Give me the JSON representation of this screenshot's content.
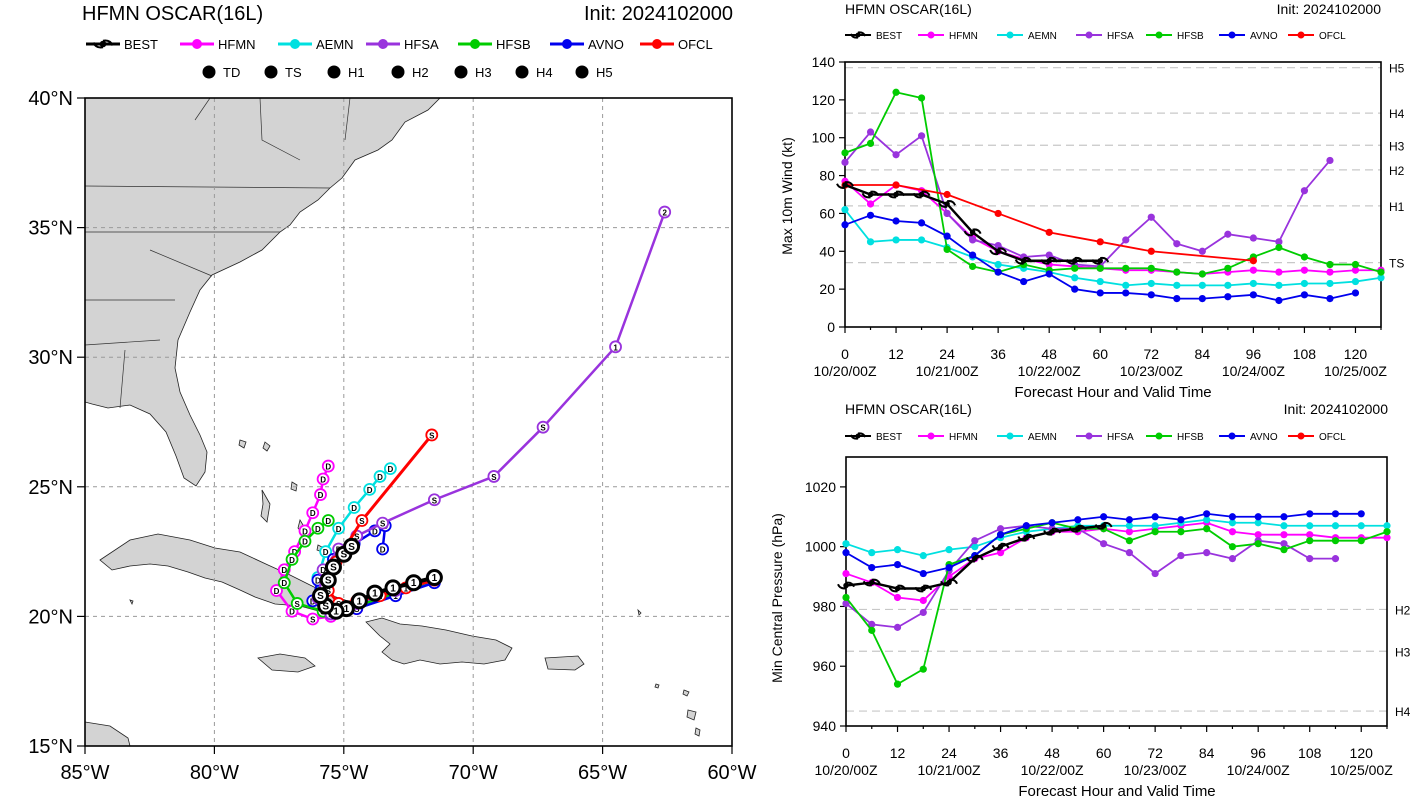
{
  "map_panel": {
    "title": "HFMN OSCAR(16L)",
    "init": "Init: 2024102000",
    "legend": [
      {
        "name": "BEST",
        "color": "#000000"
      },
      {
        "name": "HFMN",
        "color": "#ff00ff"
      },
      {
        "name": "AEMN",
        "color": "#00e0e0"
      },
      {
        "name": "HFSA",
        "color": "#9933dd"
      },
      {
        "name": "HFSB",
        "color": "#00cc00"
      },
      {
        "name": "AVNO",
        "color": "#0000ee"
      },
      {
        "name": "OFCL",
        "color": "#ff0000"
      }
    ],
    "intensity_legend": [
      {
        "symbol": "D",
        "label": "TD"
      },
      {
        "symbol": "S",
        "label": "TS"
      },
      {
        "symbol": "1",
        "label": "H1"
      },
      {
        "symbol": "2",
        "label": "H2"
      },
      {
        "symbol": "3",
        "label": "H3"
      },
      {
        "symbol": "4",
        "label": "H4"
      },
      {
        "symbol": "5",
        "label": "H5"
      }
    ],
    "lon_labels": [
      "85°W",
      "80°W",
      "75°W",
      "70°W",
      "65°W",
      "60°W"
    ],
    "lat_labels": [
      "40°N",
      "35°N",
      "30°N",
      "25°N",
      "20°N",
      "15°N"
    ]
  },
  "wind_panel": {
    "title": "HFMN OSCAR(16L)",
    "init": "Init: 2024102000",
    "ylabel": "Max 10m Wind (kt)",
    "xlabel": "Forecast Hour and Valid Time",
    "yticks": [
      "0",
      "20",
      "40",
      "60",
      "80",
      "100",
      "120",
      "140"
    ],
    "xticks": [
      "0",
      "12",
      "24",
      "36",
      "48",
      "60",
      "72",
      "84",
      "96",
      "108",
      "120"
    ],
    "date_labels": [
      "10/20/00Z",
      "10/21/00Z",
      "10/22/00Z",
      "10/23/00Z",
      "10/24/00Z",
      "10/25/00Z"
    ],
    "thresholds": [
      {
        "label": "TS",
        "value": 34
      },
      {
        "label": "H1",
        "value": 64
      },
      {
        "label": "H2",
        "value": 83
      },
      {
        "label": "H3",
        "value": 96
      },
      {
        "label": "H4",
        "value": 113
      },
      {
        "label": "H5",
        "value": 137
      }
    ]
  },
  "pres_panel": {
    "title": "HFMN OSCAR(16L)",
    "init": "Init: 2024102000",
    "ylabel": "Min Central Pressure (hPa)",
    "xlabel": "Forecast Hour and Valid Time",
    "yticks": [
      "940",
      "960",
      "980",
      "1000",
      "1020"
    ],
    "xticks": [
      "0",
      "12",
      "24",
      "36",
      "48",
      "60",
      "72",
      "84",
      "96",
      "108",
      "120"
    ],
    "date_labels": [
      "10/20/00Z",
      "10/21/00Z",
      "10/22/00Z",
      "10/23/00Z",
      "10/24/00Z",
      "10/25/00Z"
    ],
    "thresholds": [
      {
        "label": "H2",
        "value": 979
      },
      {
        "label": "H3",
        "value": 965
      },
      {
        "label": "H4",
        "value": 945
      }
    ]
  },
  "chart_data": [
    {
      "type": "line",
      "title": "HFMN OSCAR(16L)",
      "xlabel": "Forecast Hour and Valid Time",
      "ylabel": "Max 10m Wind (kt)",
      "xlim": [
        0,
        126
      ],
      "ylim": [
        0,
        140
      ],
      "series": [
        {
          "name": "BEST",
          "color": "#000000",
          "x": [
            0,
            6,
            12,
            18,
            24,
            30,
            36,
            42,
            48,
            54,
            60
          ],
          "values": [
            75,
            70,
            70,
            70,
            65,
            50,
            40,
            35,
            35,
            35,
            35
          ]
        },
        {
          "name": "HFMN",
          "color": "#ff00ff",
          "x": [
            0,
            6,
            12,
            18,
            24,
            30,
            36,
            42,
            48,
            54,
            60,
            66,
            72,
            78,
            84,
            90,
            96,
            102,
            108,
            114,
            120,
            126
          ],
          "values": [
            77,
            65,
            75,
            72,
            60,
            47,
            40,
            36,
            33,
            32,
            31,
            30,
            30,
            29,
            28,
            29,
            30,
            29,
            30,
            29,
            30,
            30
          ]
        },
        {
          "name": "AEMN",
          "color": "#00e0e0",
          "x": [
            0,
            6,
            12,
            18,
            24,
            30,
            36,
            42,
            48,
            54,
            60,
            66,
            72,
            78,
            84,
            90,
            96,
            102,
            108,
            114,
            120,
            126
          ],
          "values": [
            62,
            45,
            46,
            46,
            42,
            37,
            33,
            31,
            29,
            26,
            24,
            22,
            23,
            22,
            22,
            22,
            23,
            22,
            23,
            23,
            24,
            26
          ]
        },
        {
          "name": "HFSA",
          "color": "#9933dd",
          "x": [
            0,
            6,
            12,
            18,
            24,
            30,
            36,
            42,
            48,
            54,
            60,
            66,
            72,
            78,
            84,
            90,
            96,
            102,
            108,
            114
          ],
          "values": [
            87,
            103,
            91,
            101,
            60,
            46,
            43,
            37,
            38,
            33,
            32,
            46,
            58,
            44,
            40,
            49,
            47,
            45,
            72,
            88
          ]
        },
        {
          "name": "HFSB",
          "color": "#00cc00",
          "x": [
            0,
            6,
            12,
            18,
            24,
            30,
            36,
            42,
            48,
            54,
            60,
            66,
            72,
            78,
            84,
            90,
            96,
            102,
            108,
            114,
            120,
            126
          ],
          "values": [
            92,
            97,
            124,
            121,
            41,
            32,
            29,
            33,
            30,
            31,
            31,
            31,
            31,
            29,
            28,
            31,
            37,
            42,
            37,
            33,
            33,
            29
          ]
        },
        {
          "name": "AVNO",
          "color": "#0000ee",
          "x": [
            0,
            6,
            12,
            18,
            24,
            30,
            36,
            42,
            48,
            54,
            60,
            66,
            72,
            78,
            84,
            90,
            96,
            102,
            108,
            114,
            120
          ],
          "values": [
            54,
            59,
            56,
            55,
            48,
            38,
            29,
            24,
            28,
            20,
            18,
            18,
            17,
            15,
            15,
            16,
            17,
            14,
            17,
            15,
            18
          ]
        },
        {
          "name": "OFCL",
          "color": "#ff0000",
          "x": [
            0,
            12,
            24,
            36,
            48,
            60,
            72,
            96
          ],
          "values": [
            75,
            75,
            70,
            60,
            50,
            45,
            40,
            35
          ]
        }
      ]
    },
    {
      "type": "line",
      "title": "HFMN OSCAR(16L)",
      "xlabel": "Forecast Hour and Valid Time",
      "ylabel": "Min Central Pressure (hPa)",
      "xlim": [
        0,
        126
      ],
      "ylim": [
        940,
        1030
      ],
      "series": [
        {
          "name": "BEST",
          "color": "#000000",
          "x": [
            0,
            6,
            12,
            18,
            24,
            30,
            36,
            42,
            48,
            54,
            60
          ],
          "values": [
            987,
            988,
            986,
            986,
            988,
            996,
            1000,
            1003,
            1005,
            1006,
            1007
          ]
        },
        {
          "name": "HFMN",
          "color": "#ff00ff",
          "x": [
            0,
            6,
            12,
            18,
            24,
            30,
            36,
            42,
            48,
            54,
            60,
            66,
            72,
            78,
            84,
            90,
            96,
            102,
            108,
            114,
            120,
            126
          ],
          "values": [
            991,
            988,
            983,
            982,
            990,
            996,
            998,
            1003,
            1005,
            1005,
            1006,
            1005,
            1006,
            1007,
            1008,
            1005,
            1004,
            1004,
            1004,
            1003,
            1003,
            1003
          ]
        },
        {
          "name": "AEMN",
          "color": "#00e0e0",
          "x": [
            0,
            6,
            12,
            18,
            24,
            30,
            36,
            42,
            48,
            54,
            60,
            66,
            72,
            78,
            84,
            90,
            96,
            102,
            108,
            114,
            120,
            126
          ],
          "values": [
            1001,
            998,
            999,
            997,
            999,
            1000,
            1003,
            1005,
            1006,
            1007,
            1007,
            1007,
            1007,
            1008,
            1009,
            1008,
            1008,
            1007,
            1007,
            1007,
            1007,
            1007
          ]
        },
        {
          "name": "HFSA",
          "color": "#9933dd",
          "x": [
            0,
            6,
            12,
            18,
            24,
            30,
            36,
            42,
            48,
            54,
            60,
            66,
            72,
            78,
            84,
            90,
            96,
            102,
            108,
            114
          ],
          "values": [
            981,
            974,
            973,
            978,
            992,
            1002,
            1006,
            1007,
            1006,
            1006,
            1001,
            998,
            991,
            997,
            998,
            996,
            1002,
            1001,
            996,
            996
          ]
        },
        {
          "name": "HFSB",
          "color": "#00cc00",
          "x": [
            0,
            6,
            12,
            18,
            24,
            30,
            36,
            42,
            48,
            54,
            60,
            66,
            72,
            78,
            84,
            90,
            96,
            102,
            108,
            114,
            120,
            126
          ],
          "values": [
            983,
            972,
            954,
            959,
            994,
            997,
            1004,
            1006,
            1008,
            1006,
            1006,
            1002,
            1005,
            1005,
            1006,
            1000,
            1001,
            999,
            1002,
            1002,
            1002,
            1005
          ]
        },
        {
          "name": "AVNO",
          "color": "#0000ee",
          "x": [
            0,
            6,
            12,
            18,
            24,
            30,
            36,
            42,
            48,
            54,
            60,
            66,
            72,
            78,
            84,
            90,
            96,
            102,
            108,
            114,
            120
          ],
          "values": [
            998,
            993,
            994,
            991,
            993,
            997,
            1004,
            1007,
            1008,
            1009,
            1010,
            1009,
            1010,
            1009,
            1011,
            1010,
            1010,
            1010,
            1011,
            1011,
            1011
          ]
        },
        {
          "name": "OFCL",
          "color": "#ff0000",
          "x": [],
          "values": []
        }
      ]
    },
    {
      "type": "line",
      "title": "HFMN OSCAR(16L)",
      "xlabel": "",
      "ylabel": "",
      "xlim": [
        -85,
        -60
      ],
      "ylim": [
        15,
        40
      ],
      "series": [
        {
          "name": "BEST",
          "color": "#000000",
          "lon": [
            -71.5,
            -72.3,
            -73.1,
            -73.8,
            -74.4,
            -74.9,
            -75.3,
            -75.7,
            -75.9,
            -75.6,
            -75.4,
            -75.0,
            -74.7
          ],
          "lat": [
            21.5,
            21.3,
            21.1,
            20.9,
            20.6,
            20.3,
            20.2,
            20.4,
            20.8,
            21.4,
            21.9,
            22.4,
            22.7
          ],
          "symbols": [
            "1",
            "1",
            "1",
            "1",
            "1",
            "1",
            "1",
            "S",
            "S",
            "S",
            "S",
            "S",
            "S"
          ]
        },
        {
          "name": "HFMN",
          "color": "#ff00ff",
          "lon": [
            -71.5,
            -73.0,
            -74.5,
            -75.5,
            -76.2,
            -77.0,
            -77.6,
            -77.3,
            -76.9,
            -76.5,
            -76.2,
            -75.9,
            -75.8,
            -75.6
          ],
          "lat": [
            21.4,
            20.9,
            20.3,
            20.0,
            19.9,
            20.2,
            21.0,
            21.8,
            22.5,
            23.3,
            24.0,
            24.7,
            25.3,
            25.8
          ],
          "symbols": [
            "1",
            "1",
            "1",
            "S",
            "S",
            "D",
            "D",
            "D",
            "D",
            "D",
            "D",
            "D",
            "D",
            "D"
          ]
        },
        {
          "name": "AEMN",
          "color": "#00e0e0",
          "lon": [
            -71.5,
            -73.0,
            -74.5,
            -75.4,
            -75.9,
            -76.0,
            -75.7,
            -75.2,
            -74.6,
            -74.0,
            -73.6,
            -73.2
          ],
          "lat": [
            21.4,
            20.9,
            20.4,
            20.2,
            20.6,
            21.5,
            22.5,
            23.4,
            24.2,
            24.9,
            25.4,
            25.7
          ],
          "symbols": [
            "1",
            "1",
            "S",
            "S",
            "S",
            "D",
            "D",
            "D",
            "D",
            "D",
            "D",
            "D"
          ]
        },
        {
          "name": "HFSA",
          "color": "#9933dd",
          "lon": [
            -71.5,
            -73.0,
            -74.5,
            -75.5,
            -76.0,
            -75.8,
            -75.2,
            -74.5,
            -73.5,
            -71.5,
            -69.2,
            -67.3,
            -64.5,
            -62.6
          ],
          "lat": [
            21.4,
            21.0,
            20.5,
            20.1,
            20.7,
            21.8,
            22.6,
            23.1,
            23.6,
            24.5,
            25.4,
            27.3,
            30.4,
            35.6
          ],
          "symbols": [
            "1",
            "1",
            "1",
            "S",
            "S",
            "D",
            "D",
            "S",
            "S",
            "S",
            "S",
            "S",
            "1",
            "2"
          ]
        },
        {
          "name": "HFSB",
          "color": "#00cc00",
          "lon": [
            -71.5,
            -73.0,
            -74.5,
            -75.8,
            -76.8,
            -77.3,
            -77.0,
            -76.5,
            -76.0,
            -75.6
          ],
          "lat": [
            21.4,
            20.9,
            20.4,
            20.2,
            20.5,
            21.3,
            22.2,
            22.9,
            23.4,
            23.7
          ],
          "symbols": [
            "1",
            "1",
            "S",
            "S",
            "S",
            "D",
            "D",
            "D",
            "D",
            "D"
          ]
        },
        {
          "name": "AVNO",
          "color": "#0000ee",
          "lon": [
            -71.5,
            -73.0,
            -74.5,
            -75.5,
            -76.2,
            -76.0,
            -75.4,
            -74.6,
            -73.8,
            -73.4,
            -73.5
          ],
          "lat": [
            21.3,
            20.8,
            20.3,
            20.1,
            20.6,
            21.4,
            22.2,
            22.8,
            23.3,
            23.5,
            22.6
          ],
          "symbols": [
            "1",
            "1",
            "S",
            "D",
            "D",
            "D",
            "D",
            "D",
            "D",
            "D",
            "D"
          ]
        },
        {
          "name": "OFCL",
          "color": "#ff0000",
          "lon": [
            -71.5,
            -72.6,
            -73.6,
            -74.5,
            -75.2,
            -75.6,
            -75.3,
            -74.3,
            -71.6
          ],
          "lat": [
            21.4,
            21.1,
            20.8,
            20.6,
            20.5,
            21.0,
            22.1,
            23.7,
            27.0
          ],
          "symbols": [
            "1",
            "1",
            "1",
            "1",
            "S",
            "S",
            "S",
            "S",
            "S"
          ]
        }
      ]
    }
  ]
}
